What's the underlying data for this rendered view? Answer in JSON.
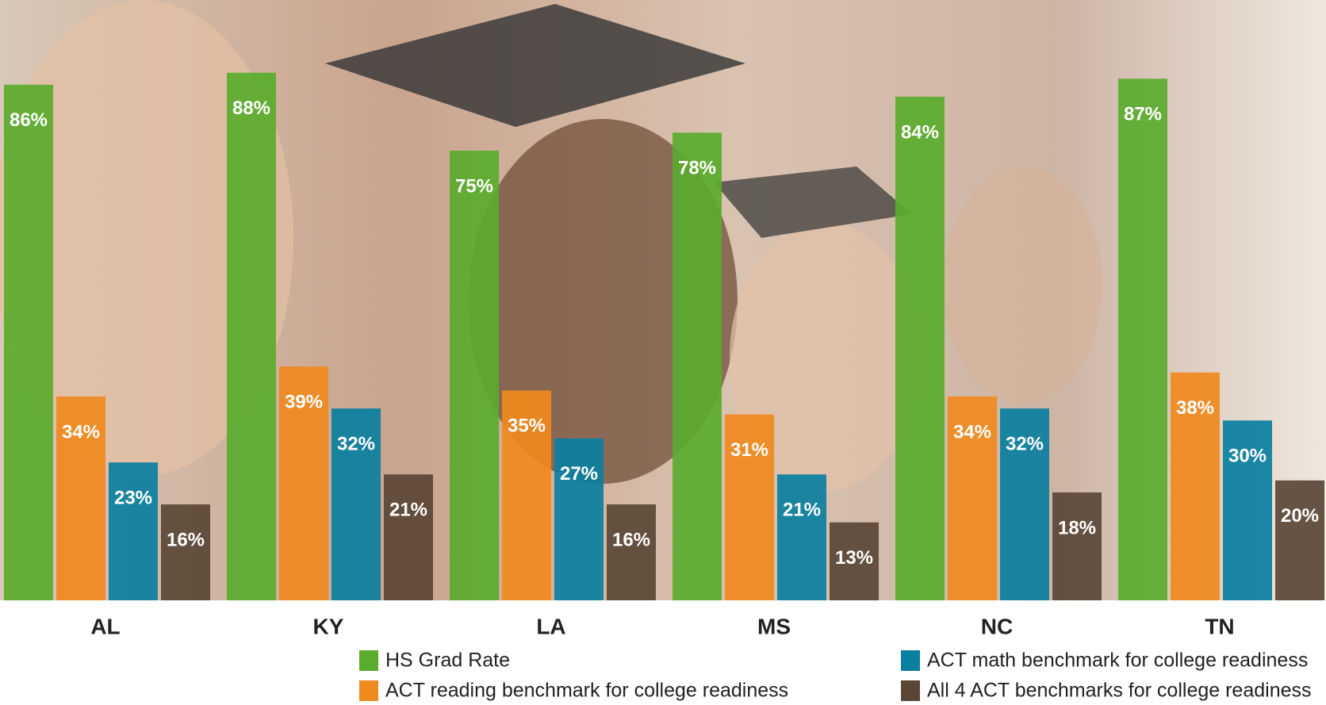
{
  "chart_data": {
    "type": "bar",
    "categories": [
      "AL",
      "KY",
      "LA",
      "MS",
      "NC",
      "TN"
    ],
    "series": [
      {
        "name": "HS Grad Rate",
        "color": "#5aab2e",
        "values": [
          86,
          88,
          75,
          78,
          84,
          87
        ],
        "value_labels": [
          "86%",
          "88%",
          "75%",
          "78%",
          "84%",
          "87%"
        ]
      },
      {
        "name": "ACT reading benchmark for college readiness",
        "color": "#f0891e",
        "values": [
          34,
          39,
          35,
          31,
          34,
          38
        ],
        "value_labels": [
          "34%",
          "39%",
          "35%",
          "31%",
          "34%",
          "38%"
        ]
      },
      {
        "name": "ACT math benchmark for college readiness",
        "color": "#0a7fa0",
        "values": [
          23,
          32,
          27,
          21,
          32,
          30
        ],
        "value_labels": [
          "23%",
          "32%",
          "27%",
          "21%",
          "32%",
          "30%"
        ]
      },
      {
        "name": "All 4 ACT benchmarks for college readiness",
        "color": "#5a4636",
        "values": [
          16,
          21,
          16,
          13,
          18,
          20
        ],
        "value_labels": [
          "16%",
          "21%",
          "16%",
          "13%",
          "18%",
          "20%"
        ]
      }
    ],
    "ylim": [
      0,
      100
    ]
  }
}
